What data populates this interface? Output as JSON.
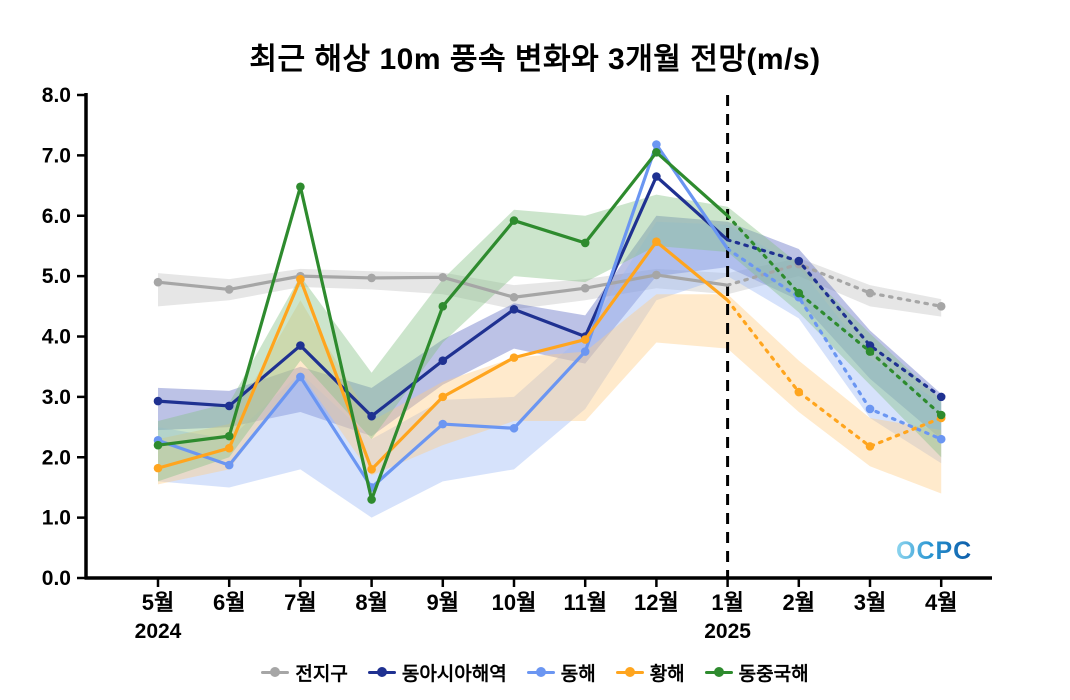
{
  "watermark": "OCPC",
  "chart_data": {
    "type": "line",
    "title": "최근 해상 10m 풍속 변화와 3개월 전망(m/s)",
    "ylim": [
      0,
      8
    ],
    "y_tick_step": 1,
    "y_tick_labels": [
      "0.0",
      "1.0",
      "2.0",
      "3.0",
      "4.0",
      "5.0",
      "6.0",
      "7.0",
      "8.0"
    ],
    "x_tick_labels": [
      "5월",
      "6월",
      "7월",
      "8월",
      "9월",
      "10월",
      "11월",
      "12월",
      "1월",
      "2월",
      "3월",
      "4월"
    ],
    "x_year_labels": [
      {
        "label": "2024",
        "index": 0
      },
      {
        "label": "2025",
        "index": 8
      }
    ],
    "forecast_start_index": 8,
    "forecast_divider_x_label": "1월",
    "forecast_line_style": "dotted",
    "grid": false,
    "legend_position": "bottom",
    "series": [
      {
        "id": "global",
        "name": "전지구",
        "color": "#a6a6a6",
        "band_color": "#c4c4c4",
        "values": [
          4.9,
          4.78,
          5.0,
          4.97,
          4.98,
          4.65,
          4.8,
          5.02,
          4.85,
          5.2,
          4.72,
          4.5
        ],
        "band_upper": [
          5.05,
          4.95,
          5.12,
          5.08,
          5.06,
          4.85,
          4.95,
          5.12,
          5.05,
          5.3,
          4.85,
          4.62
        ],
        "band_lower": [
          4.5,
          4.6,
          4.82,
          4.78,
          4.7,
          4.45,
          4.6,
          4.8,
          4.7,
          5.0,
          4.5,
          4.33
        ]
      },
      {
        "id": "east-asia-seas",
        "name": "동아시아해역",
        "color": "#1f3191",
        "band_color": "#5f6ec4",
        "values": [
          2.93,
          2.85,
          3.85,
          2.68,
          3.6,
          4.45,
          4.0,
          6.65,
          5.6,
          5.25,
          3.85,
          3.0
        ],
        "band_upper": [
          3.15,
          3.1,
          3.5,
          3.15,
          3.95,
          4.55,
          4.35,
          6.0,
          5.9,
          5.45,
          4.1,
          3.05
        ],
        "band_lower": [
          2.45,
          2.5,
          2.75,
          2.35,
          3.2,
          3.8,
          3.55,
          5.0,
          5.15,
          4.6,
          3.3,
          2.3
        ]
      },
      {
        "id": "east-sea",
        "name": "동해",
        "color": "#6b96f2",
        "band_color": "#9db9f5",
        "values": [
          2.28,
          1.87,
          3.33,
          1.5,
          2.55,
          2.48,
          3.75,
          7.18,
          5.45,
          4.65,
          2.8,
          2.3
        ],
        "band_upper": [
          2.5,
          2.3,
          3.4,
          2.3,
          2.95,
          3.0,
          4.05,
          5.9,
          5.85,
          5.15,
          3.65,
          2.9
        ],
        "band_lower": [
          1.6,
          1.5,
          1.8,
          1.0,
          1.6,
          1.8,
          2.8,
          4.6,
          5.0,
          4.3,
          2.65,
          1.9
        ]
      },
      {
        "id": "yellow-sea",
        "name": "황해",
        "color": "#ffa51e",
        "band_color": "#ffce85",
        "values": [
          1.82,
          2.15,
          4.95,
          1.8,
          3.0,
          3.65,
          3.95,
          5.57,
          4.6,
          3.08,
          2.18,
          2.65
        ],
        "band_upper": [
          2.3,
          2.55,
          4.6,
          2.6,
          3.25,
          3.65,
          3.75,
          4.7,
          4.7,
          3.6,
          2.65,
          2.45
        ],
        "band_lower": [
          1.55,
          1.8,
          3.4,
          1.7,
          2.2,
          2.6,
          2.6,
          3.9,
          3.8,
          2.75,
          1.85,
          1.4
        ]
      },
      {
        "id": "east-china-sea",
        "name": "동중국해",
        "color": "#2e8b2e",
        "band_color": "#85c285",
        "values": [
          2.2,
          2.35,
          6.48,
          1.3,
          4.5,
          5.92,
          5.55,
          7.05,
          6.0,
          4.72,
          3.75,
          2.7
        ],
        "band_upper": [
          2.6,
          2.9,
          5.0,
          3.4,
          4.95,
          6.1,
          6.0,
          6.35,
          6.15,
          5.2,
          4.05,
          2.95
        ],
        "band_lower": [
          1.6,
          2.0,
          3.6,
          2.3,
          3.9,
          5.0,
          4.9,
          5.5,
          5.4,
          4.4,
          3.2,
          2.0
        ]
      }
    ]
  }
}
